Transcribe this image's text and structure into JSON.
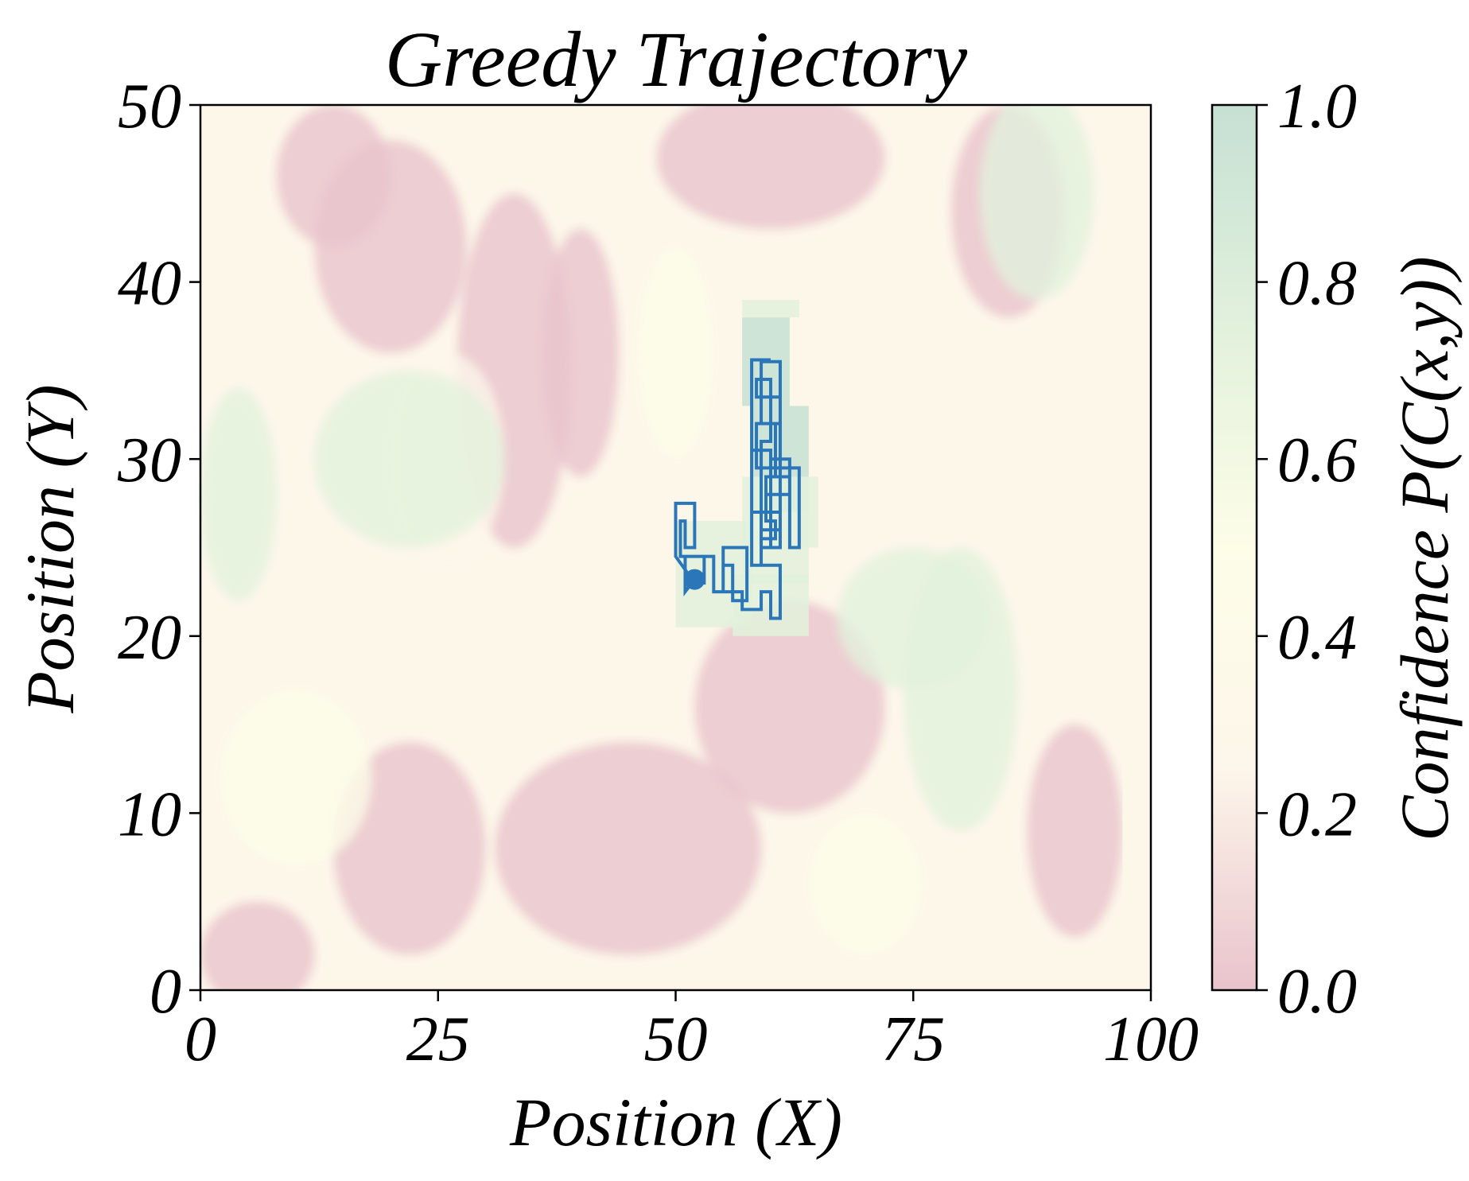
{
  "chart_data": {
    "type": "heatmap",
    "title": "Greedy Trajectory",
    "xlabel": "Position (X)",
    "ylabel": "Position (Y)",
    "xlim": [
      0,
      100
    ],
    "ylim": [
      0,
      50
    ],
    "xticks": [
      "0",
      "25",
      "50",
      "75",
      "100"
    ],
    "yticks": [
      "0",
      "10",
      "20",
      "30",
      "40",
      "50"
    ],
    "colorbar": {
      "label": "Confidence P(C(x,y))",
      "range": [
        0.0,
        1.0
      ],
      "ticks": [
        "0.0",
        "0.2",
        "0.4",
        "0.6",
        "0.8",
        "1.0"
      ],
      "colors": [
        "#e9c3cc",
        "#fdf6ea",
        "#fdfde8",
        "#e2f1dc",
        "#c6e0d4"
      ]
    },
    "trajectory": {
      "color": "#2a76b8",
      "start": [
        52,
        23.2
      ],
      "points": [
        [
          52,
          23.2
        ],
        [
          51,
          22.5
        ],
        [
          51,
          24.5
        ],
        [
          53,
          24.5
        ],
        [
          53,
          23
        ],
        [
          52,
          23
        ],
        [
          50,
          24.5
        ],
        [
          50,
          27.5
        ],
        [
          52,
          27.5
        ],
        [
          52,
          25
        ],
        [
          51,
          25
        ],
        [
          51,
          26.5
        ],
        [
          50.5,
          26.5
        ],
        [
          50.5,
          24.5
        ],
        [
          54,
          24.5
        ],
        [
          54,
          22.5
        ],
        [
          55,
          22.5
        ],
        [
          55,
          25
        ],
        [
          57.5,
          25
        ],
        [
          57.5,
          22
        ],
        [
          56,
          22
        ],
        [
          56,
          24
        ],
        [
          55,
          24
        ],
        [
          55,
          22.5
        ],
        [
          57,
          22.5
        ],
        [
          57,
          21.5
        ],
        [
          59,
          21.5
        ],
        [
          59,
          22.5
        ],
        [
          60,
          22.5
        ],
        [
          60,
          21
        ],
        [
          61,
          21
        ],
        [
          61,
          24
        ],
        [
          59,
          24
        ],
        [
          59,
          26
        ],
        [
          61,
          26
        ],
        [
          61,
          27
        ],
        [
          58,
          27
        ],
        [
          58,
          30.5
        ],
        [
          60,
          30.5
        ],
        [
          60,
          28
        ],
        [
          62,
          28
        ],
        [
          62,
          30
        ],
        [
          60,
          30
        ],
        [
          60,
          29.5
        ],
        [
          61,
          29.5
        ],
        [
          61,
          27
        ],
        [
          59.5,
          27
        ],
        [
          59.5,
          29
        ],
        [
          62,
          29
        ],
        [
          62,
          25
        ],
        [
          63,
          25
        ],
        [
          63,
          29.5
        ],
        [
          58.5,
          29.5
        ],
        [
          58.5,
          32
        ],
        [
          60.5,
          32
        ],
        [
          60.5,
          29
        ],
        [
          60,
          29
        ],
        [
          60,
          25
        ],
        [
          61,
          25
        ],
        [
          61,
          28
        ],
        [
          59.5,
          28
        ],
        [
          59.5,
          26.5
        ],
        [
          60.5,
          26.5
        ],
        [
          60.5,
          25.5
        ],
        [
          59,
          25.5
        ],
        [
          59,
          31
        ],
        [
          60,
          31
        ],
        [
          60,
          34.5
        ],
        [
          58.5,
          34.5
        ],
        [
          58.5,
          33.5
        ],
        [
          61,
          33.5
        ],
        [
          61,
          32
        ],
        [
          59,
          32
        ],
        [
          59,
          35.5
        ],
        [
          61,
          35.5
        ],
        [
          61,
          25
        ],
        [
          59,
          25
        ],
        [
          59,
          24
        ],
        [
          58,
          24
        ],
        [
          58,
          35.6
        ],
        [
          60,
          35.6
        ]
      ]
    }
  }
}
